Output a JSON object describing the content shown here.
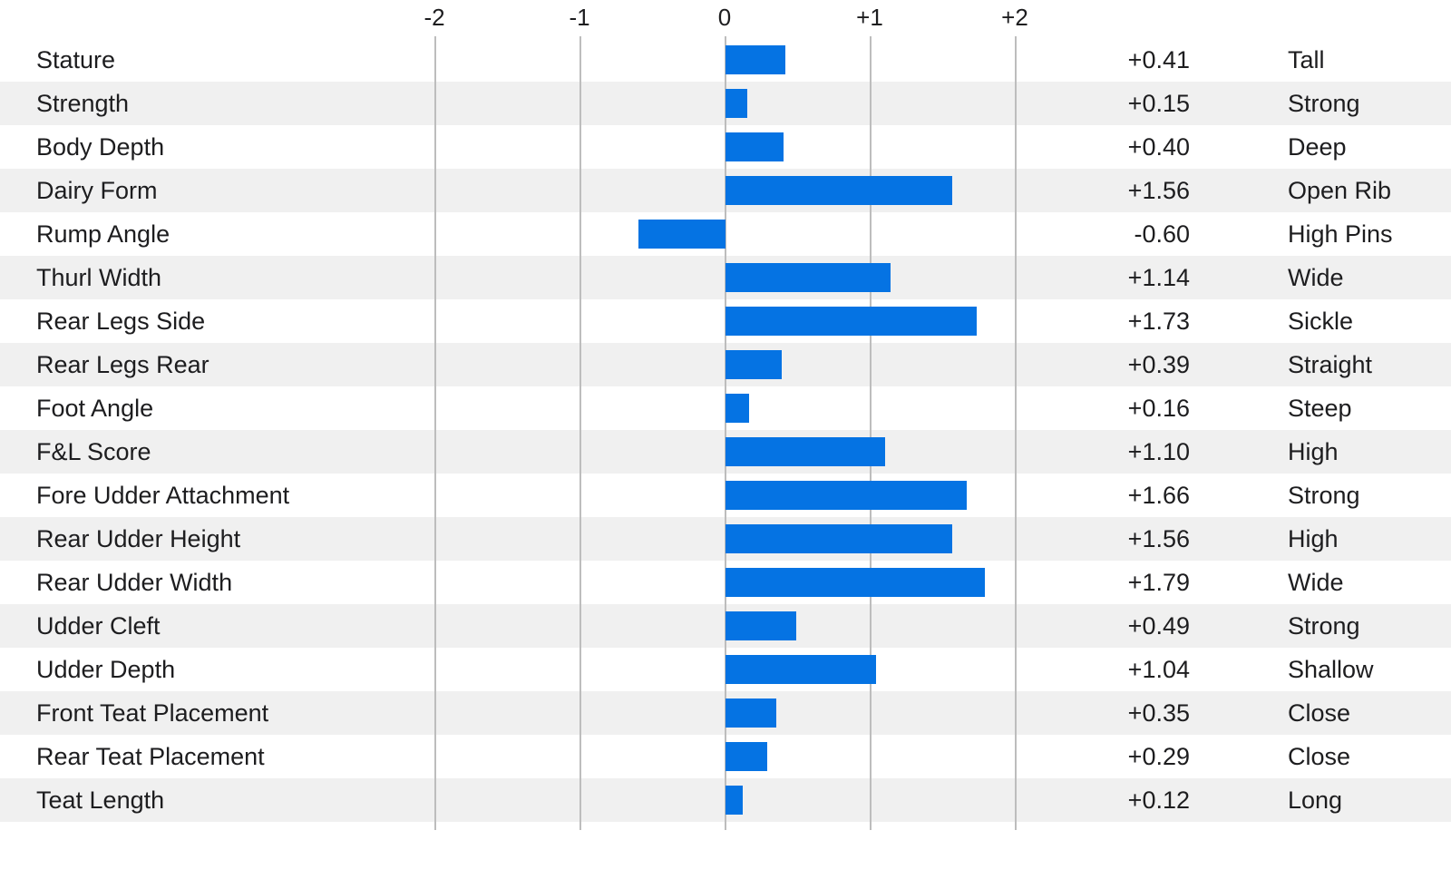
{
  "chart_data": {
    "type": "bar",
    "orientation": "horizontal",
    "title": "",
    "xlabel": "",
    "ylabel": "",
    "xlim": [
      -2.5,
      2.5
    ],
    "grid": true,
    "legend": false,
    "x_ticks": [
      -2,
      -1,
      0,
      1,
      2
    ],
    "x_tick_labels": [
      "-2",
      "-1",
      "0",
      "+1",
      "+2"
    ],
    "categories": [
      "Stature",
      "Strength",
      "Body Depth",
      "Dairy Form",
      "Rump Angle",
      "Thurl Width",
      "Rear Legs Side",
      "Rear Legs Rear",
      "Foot Angle",
      "F&L Score",
      "Fore Udder Attachment",
      "Rear Udder Height",
      "Rear Udder Width",
      "Udder Cleft",
      "Udder Depth",
      "Front Teat Placement",
      "Rear Teat Placement",
      "Teat Length"
    ],
    "values": [
      0.41,
      0.15,
      0.4,
      1.56,
      -0.6,
      1.14,
      1.73,
      0.39,
      0.16,
      1.1,
      1.66,
      1.56,
      1.79,
      0.49,
      1.04,
      0.35,
      0.29,
      0.12
    ],
    "rows": [
      {
        "trait": "Stature",
        "value": 0.41,
        "value_label": "+0.41",
        "descriptor": "Tall"
      },
      {
        "trait": "Strength",
        "value": 0.15,
        "value_label": "+0.15",
        "descriptor": "Strong"
      },
      {
        "trait": "Body Depth",
        "value": 0.4,
        "value_label": "+0.40",
        "descriptor": "Deep"
      },
      {
        "trait": "Dairy Form",
        "value": 1.56,
        "value_label": "+1.56",
        "descriptor": "Open Rib"
      },
      {
        "trait": "Rump Angle",
        "value": -0.6,
        "value_label": "-0.60",
        "descriptor": "High Pins"
      },
      {
        "trait": "Thurl Width",
        "value": 1.14,
        "value_label": "+1.14",
        "descriptor": "Wide"
      },
      {
        "trait": "Rear Legs Side",
        "value": 1.73,
        "value_label": "+1.73",
        "descriptor": "Sickle"
      },
      {
        "trait": "Rear Legs Rear",
        "value": 0.39,
        "value_label": "+0.39",
        "descriptor": "Straight"
      },
      {
        "trait": "Foot Angle",
        "value": 0.16,
        "value_label": "+0.16",
        "descriptor": "Steep"
      },
      {
        "trait": "F&L Score",
        "value": 1.1,
        "value_label": "+1.10",
        "descriptor": "High"
      },
      {
        "trait": "Fore Udder Attachment",
        "value": 1.66,
        "value_label": "+1.66",
        "descriptor": "Strong"
      },
      {
        "trait": "Rear Udder Height",
        "value": 1.56,
        "value_label": "+1.56",
        "descriptor": "High"
      },
      {
        "trait": "Rear Udder Width",
        "value": 1.79,
        "value_label": "+1.79",
        "descriptor": "Wide"
      },
      {
        "trait": "Udder Cleft",
        "value": 0.49,
        "value_label": "+0.49",
        "descriptor": "Strong"
      },
      {
        "trait": "Udder Depth",
        "value": 1.04,
        "value_label": "+1.04",
        "descriptor": "Shallow"
      },
      {
        "trait": "Front Teat Placement",
        "value": 0.35,
        "value_label": "+0.35",
        "descriptor": "Close"
      },
      {
        "trait": "Rear Teat Placement",
        "value": 0.29,
        "value_label": "+0.29",
        "descriptor": "Close"
      },
      {
        "trait": "Teat Length",
        "value": 0.12,
        "value_label": "+0.12",
        "descriptor": "Long"
      }
    ],
    "colors": {
      "bar": "#0573E3",
      "row_stripe": "#F0F0F0",
      "row_base": "#FFFFFF",
      "gridline": "#BDBDBD",
      "text": "#1D1D1F",
      "background": "#FFFFFF"
    }
  }
}
